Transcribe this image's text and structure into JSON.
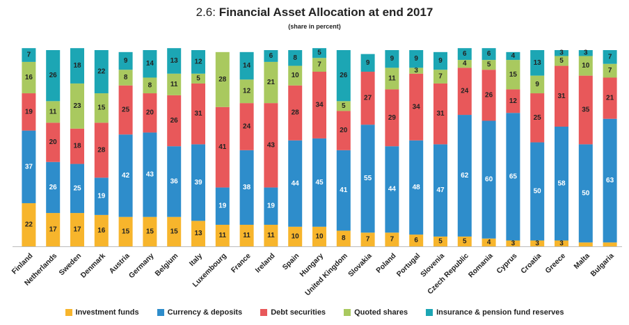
{
  "title_number": "2.6:",
  "title_text": "Financial Asset Allocation at end 2017",
  "subtitle": "(share in percent)",
  "chart_data": {
    "type": "bar",
    "stacked": true,
    "title": "2.6: Financial Asset Allocation at end 2017",
    "subtitle": "(share in percent)",
    "ylim": [
      0,
      100
    ],
    "legend_position": "bottom",
    "categories": [
      "Finland",
      "Netherlands",
      "Sweden",
      "Denmark",
      "Austria",
      "Germany",
      "Belgium",
      "Italy",
      "Luxembourg",
      "France",
      "Ireland",
      "Spain",
      "Hungary",
      "United Kingdom",
      "Slovakia",
      "Poland",
      "Portugal",
      "Slovenia",
      "Czech Republic",
      "Romania",
      "Cyprus",
      "Croatia",
      "Greece",
      "Malta",
      "Bulgaria"
    ],
    "series": [
      {
        "name": "Investment funds",
        "color": "#F7B52C",
        "label_color": "#222222",
        "values": [
          22,
          17,
          17,
          16,
          15,
          15,
          15,
          13,
          11,
          11,
          11,
          10,
          10,
          8,
          7,
          7,
          6,
          5,
          5,
          4,
          3,
          3,
          3,
          2,
          2
        ]
      },
      {
        "name": "Currency & deposits",
        "color": "#2E8DCB",
        "label_color": "#ffffff",
        "values": [
          37,
          26,
          25,
          19,
          42,
          43,
          36,
          39,
          19,
          38,
          19,
          44,
          45,
          41,
          55,
          44,
          48,
          47,
          62,
          60,
          65,
          50,
          58,
          50,
          63
        ]
      },
      {
        "name": "Debt securities",
        "color": "#E8585A",
        "label_color": "#222222",
        "values": [
          19,
          20,
          18,
          28,
          25,
          20,
          26,
          31,
          41,
          24,
          43,
          28,
          34,
          20,
          27,
          29,
          34,
          31,
          24,
          26,
          12,
          25,
          31,
          35,
          21
        ]
      },
      {
        "name": "Quoted shares",
        "color": "#A9C95F",
        "label_color": "#222222",
        "values": [
          16,
          11,
          23,
          15,
          8,
          8,
          11,
          5,
          28,
          12,
          21,
          10,
          7,
          5,
          0,
          11,
          3,
          7,
          4,
          5,
          15,
          9,
          5,
          10,
          7
        ]
      },
      {
        "name": "Insurance & pension fund reserves",
        "color": "#1CA6B4",
        "label_color": "#222222",
        "values": [
          7,
          26,
          18,
          22,
          9,
          14,
          13,
          12,
          0,
          14,
          6,
          8,
          5,
          26,
          9,
          9,
          9,
          9,
          6,
          6,
          4,
          13,
          3,
          3,
          7
        ]
      }
    ]
  }
}
